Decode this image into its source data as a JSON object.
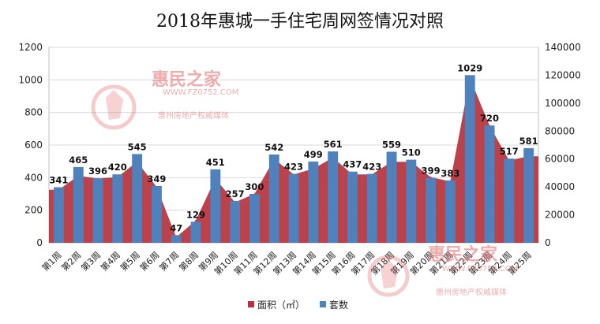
{
  "chart_data": {
    "type": "bar+area",
    "title": "2018年惠城一手住宅周网签情况对照",
    "categories": [
      "第1周",
      "第2周",
      "第3周",
      "第4周",
      "第5周",
      "第6周",
      "第7周",
      "第8周",
      "第9周",
      "第10周",
      "第11周",
      "第12周",
      "第13周",
      "第14周",
      "第15周",
      "第16周",
      "第17周",
      "第18周",
      "第19周",
      "第20周",
      "第21周",
      "第22周",
      "第23周",
      "第24周",
      "第25周"
    ],
    "series": [
      {
        "name": "面积（㎡）",
        "type": "area",
        "axis": "right",
        "color": "#b5323c",
        "values": [
          38000,
          48000,
          46000,
          47000,
          58000,
          40000,
          4000,
          16000,
          46000,
          29000,
          35000,
          60000,
          49000,
          53000,
          61000,
          49000,
          49000,
          58000,
          58000,
          47000,
          44000,
          118000,
          84000,
          59000,
          62000
        ]
      },
      {
        "name": "套数",
        "type": "bar",
        "axis": "left",
        "color": "#4f81bd",
        "values": [
          341,
          465,
          396,
          420,
          545,
          349,
          47,
          129,
          451,
          257,
          300,
          542,
          423,
          499,
          561,
          437,
          423,
          559,
          510,
          399,
          383,
          1029,
          720,
          517,
          581
        ],
        "labels": [
          "341",
          "465",
          "396",
          "420",
          "545",
          "349",
          "47",
          "129",
          "451",
          "257",
          "300",
          "542",
          "423",
          "499",
          "561",
          "437",
          "423",
          "559",
          "510",
          "399",
          "383",
          "1029",
          "720",
          "517",
          "581"
        ]
      }
    ],
    "y_left": {
      "min": 0,
      "max": 1200,
      "step": 200,
      "ticks": [
        "0",
        "200",
        "400",
        "600",
        "800",
        "1000",
        "1200"
      ]
    },
    "y_right": {
      "min": 0,
      "max": 140000,
      "step": 20000,
      "ticks": [
        "0",
        "20000",
        "40000",
        "60000",
        "80000",
        "100000",
        "120000",
        "140000"
      ]
    },
    "grid": true,
    "legend_position": "bottom"
  },
  "legend": {
    "area_label": "面积（㎡）",
    "bar_label": "套数"
  },
  "watermark": {
    "main": "惠民之家",
    "url": "WWW.FZ0752.COM",
    "sub": "惠州房地产权威媒体"
  }
}
